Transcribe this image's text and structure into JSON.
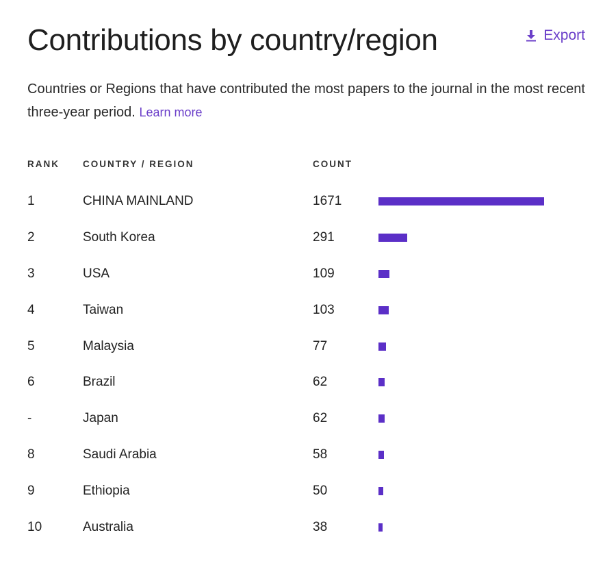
{
  "header": {
    "title": "Contributions by country/region",
    "export_label": "Export",
    "export_icon": "download-icon"
  },
  "description": {
    "text": "Countries or Regions that have contributed the most papers to the journal in the most recent three-year period.",
    "learn_more": "Learn more"
  },
  "table": {
    "columns": {
      "rank": "RANK",
      "country": "COUNTRY / REGION",
      "count": "COUNT"
    },
    "max_count": 1671,
    "accent_color": "#5b2fc7",
    "rows": [
      {
        "rank": "1",
        "country": "CHINA MAINLAND",
        "count": 1671
      },
      {
        "rank": "2",
        "country": "South Korea",
        "count": 291
      },
      {
        "rank": "3",
        "country": "USA",
        "count": 109
      },
      {
        "rank": "4",
        "country": "Taiwan",
        "count": 103
      },
      {
        "rank": "5",
        "country": "Malaysia",
        "count": 77
      },
      {
        "rank": "6",
        "country": "Brazil",
        "count": 62
      },
      {
        "rank": "-",
        "country": "Japan",
        "count": 62
      },
      {
        "rank": "8",
        "country": "Saudi Arabia",
        "count": 58
      },
      {
        "rank": "9",
        "country": "Ethiopia",
        "count": 50
      },
      {
        "rank": "10",
        "country": "Australia",
        "count": 38
      }
    ]
  }
}
